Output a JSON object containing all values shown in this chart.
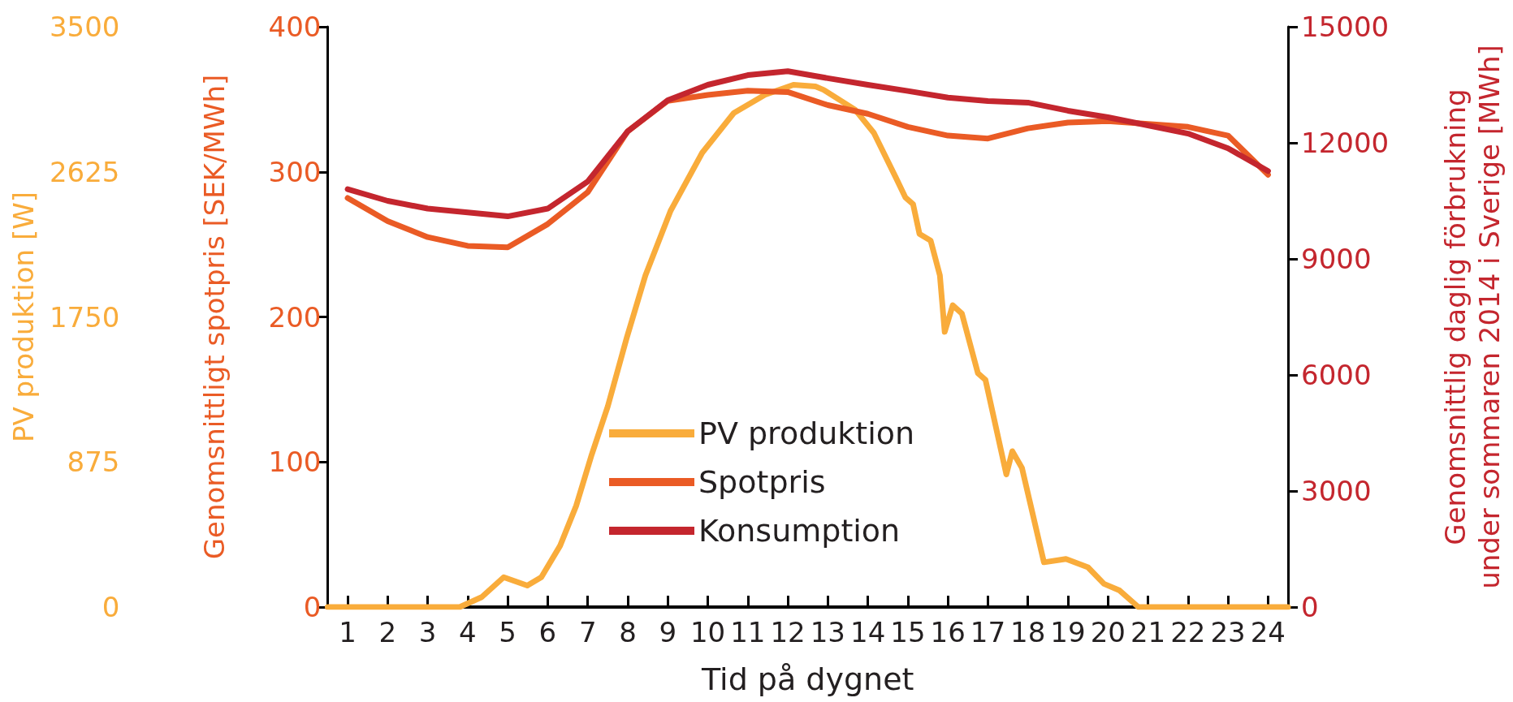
{
  "chart_data": {
    "type": "line",
    "xlabel": "Tid på dygnet",
    "ylabel": "Genomsnittligt spotpris [SEK/MWh]",
    "y2label": "Genomsnittlig daglig förbrukning\nunder sommaren 2014 i Sverige [MWh]",
    "y3label": "PV produktion [W]",
    "x": [
      1,
      2,
      3,
      4,
      5,
      6,
      7,
      8,
      9,
      10,
      11,
      12,
      13,
      14,
      15,
      16,
      17,
      18,
      19,
      20,
      21,
      22,
      23,
      24
    ],
    "xlim": [
      0.5,
      24.5
    ],
    "xticks": [
      1,
      2,
      3,
      4,
      5,
      6,
      7,
      8,
      9,
      10,
      11,
      12,
      13,
      14,
      15,
      16,
      17,
      18,
      19,
      20,
      21,
      22,
      23,
      24
    ],
    "ylim": [
      0,
      400
    ],
    "yticks": [
      0,
      100,
      200,
      300,
      400
    ],
    "y2lim": [
      0,
      15000
    ],
    "y2ticks": [
      0,
      3000,
      6000,
      9000,
      12000,
      15000
    ],
    "y3lim": [
      0,
      3500
    ],
    "y3ticks": [
      0,
      875,
      1750,
      2625,
      3500
    ],
    "legend": "bottom",
    "marker": "none",
    "line_style": "solid",
    "series": [
      {
        "name": "PV produktion",
        "color": "#f9ac3b",
        "axis": "y3",
        "x": [
          0.5,
          3.8,
          4.35,
          4.9,
          5.49,
          5.84,
          6.31,
          6.71,
          7.1,
          7.5,
          7.97,
          8.44,
          9.07,
          9.86,
          10.65,
          11.43,
          12.14,
          12.69,
          12.89,
          13.68,
          14.15,
          14.7,
          14.94,
          15.13,
          15.29,
          15.57,
          15.8,
          15.92,
          16.12,
          16.35,
          16.75,
          16.94,
          17.46,
          17.61,
          17.85,
          18.4,
          18.95,
          19.5,
          19.9,
          20.29,
          20.76,
          24.5
        ],
        "values": [
          0,
          0,
          60,
          180,
          130,
          180,
          370,
          610,
          920,
          1210,
          1620,
          2000,
          2390,
          2740,
          2980,
          3090,
          3150,
          3140,
          3120,
          3000,
          2860,
          2590,
          2470,
          2430,
          2250,
          2210,
          2000,
          1660,
          1820,
          1770,
          1410,
          1370,
          800,
          940,
          840,
          270,
          290,
          240,
          140,
          100,
          0,
          0
        ]
      },
      {
        "name": "Spotpris",
        "color": "#ea5b25",
        "values": [
          282,
          266,
          255,
          249,
          248,
          264,
          286,
          328,
          349,
          353,
          356,
          355,
          346,
          340,
          331,
          325,
          323,
          330,
          334,
          335,
          333,
          331,
          325,
          298
        ]
      },
      {
        "name": "Konsumption",
        "color": "#c4262e",
        "axis": "y2",
        "values": [
          10800,
          10500,
          10300,
          10200,
          10100,
          10300,
          11000,
          12300,
          13100,
          13500,
          13750,
          13850,
          13670,
          13500,
          13340,
          13170,
          13080,
          13040,
          12830,
          12660,
          12450,
          12240,
          11860,
          11270
        ]
      }
    ]
  }
}
